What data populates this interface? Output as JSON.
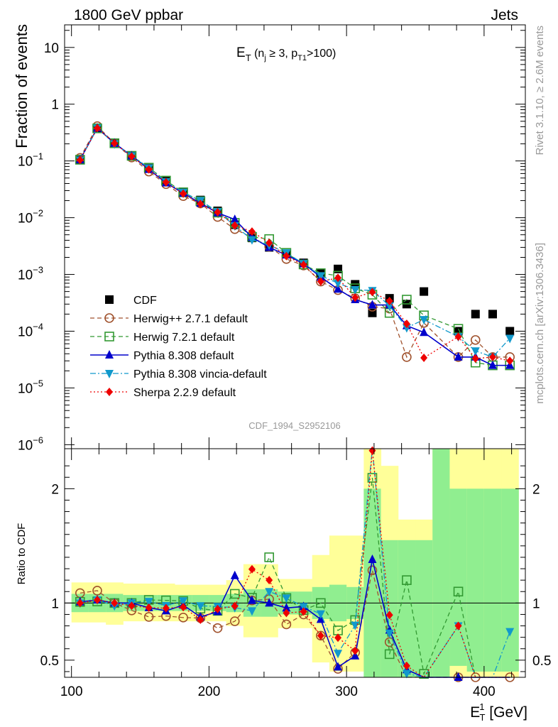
{
  "header": {
    "left": "1800 GeV ppbar",
    "right": "Jets",
    "side_top": "Rivet 3.1.10, ≥ 2.6M events",
    "side_bottom": "mcplots.cern.ch [arXiv:1306.3436]",
    "analysis": "CDF_1994_S2952106"
  },
  "chart_data": [
    {
      "type": "scatter",
      "panel": "main",
      "title": "E_T (n_j ≥ 3, p_T1>100)",
      "ylabel": "Fraction of events",
      "xlabel": "E_T^1 [GeV]",
      "yscale": "log",
      "xlim": [
        95,
        430
      ],
      "ylim": [
        8.5e-07,
        25
      ],
      "grid": false,
      "legend_position": "left-middle",
      "x": [
        106.25,
        118.75,
        131.25,
        143.75,
        156.25,
        168.75,
        181.25,
        193.75,
        206.25,
        218.75,
        231.25,
        243.75,
        256.25,
        268.75,
        281.25,
        293.75,
        306.25,
        318.75,
        331.25,
        343.75,
        356.25,
        381.25,
        393.75,
        406.25,
        418.75
      ],
      "series": [
        {
          "name": "CDF",
          "color": "#000000",
          "marker": "square-filled",
          "line": "none",
          "values": [
            0.104,
            0.37,
            0.205,
            0.123,
            0.074,
            0.044,
            0.0275,
            0.0205,
            0.0132,
            0.0075,
            0.0044,
            0.003,
            0.0023,
            0.0016,
            0.00105,
            0.00125,
            0.00067,
            0.00021,
            0.00038,
            0.0003,
            0.0005,
            0.0001,
            0.0002,
            0.0002,
            0.0001
          ]
        },
        {
          "name": "Herwig++ 2.7.1 default",
          "color": "#a0522d",
          "marker": "circle-open",
          "line": "dashed",
          "values": [
            0.113,
            0.41,
            0.205,
            0.115,
            0.065,
            0.039,
            0.024,
            0.0178,
            0.0103,
            0.0063,
            0.0045,
            0.0031,
            0.00187,
            0.00144,
            0.00075,
            0.00053,
            0.00038,
            0.00027,
            0.00025,
            3.5e-05,
            0.00014,
            3.5e-05,
            7e-05,
            3.5e-05,
            3.5e-05
          ]
        },
        {
          "name": "Herwig 7.2.1 default",
          "color": "#339933",
          "marker": "square-open",
          "line": "dashed",
          "values": [
            0.105,
            0.375,
            0.205,
            0.123,
            0.076,
            0.045,
            0.028,
            0.0195,
            0.0123,
            0.0081,
            0.0046,
            0.0042,
            0.0024,
            0.0015,
            0.00105,
            0.00095,
            0.00057,
            0.00044,
            0.00021,
            0.00036,
            0.00019,
            0.00011,
            2.8e-05,
            2.5e-05,
            2.5e-05
          ]
        },
        {
          "name": "Pythia 8.308 default",
          "color": "#0000cc",
          "marker": "triangle-up-filled",
          "line": "solid",
          "values": [
            0.105,
            0.38,
            0.205,
            0.123,
            0.071,
            0.041,
            0.027,
            0.018,
            0.0122,
            0.0093,
            0.0045,
            0.003,
            0.0022,
            0.00155,
            0.0009,
            0.00055,
            0.00036,
            0.00029,
            0.00029,
            0.000125,
            9.5e-05,
            3.5e-05,
            3.5e-05,
            2.5e-05,
            2.5e-05
          ]
        },
        {
          "name": "Pythia 8.308 vincia-default",
          "color": "#1199cc",
          "marker": "triangle-down-filled",
          "line": "dashdot",
          "values": [
            0.104,
            0.38,
            0.2,
            0.123,
            0.075,
            0.043,
            0.028,
            0.02,
            0.0128,
            0.0072,
            0.0041,
            0.0033,
            0.0024,
            0.00155,
            0.00095,
            0.0007,
            0.00054,
            0.00052,
            0.00028,
            0.000115,
            0.00016,
            8e-05,
            4.5e-05,
            3.5e-05,
            7.5e-05
          ]
        },
        {
          "name": "Sherpa 2.2.9 default",
          "color": "#ee0000",
          "marker": "diamond-filled",
          "line": "dotted",
          "values": [
            0.104,
            0.38,
            0.205,
            0.12,
            0.071,
            0.042,
            0.0265,
            0.0175,
            0.0125,
            0.0073,
            0.0057,
            0.0036,
            0.0021,
            0.00148,
            0.00075,
            0.00087,
            0.00039,
            0.00049,
            0.00034,
            0.000135,
            3.4e-05,
            8e-05,
            3.3e-05,
            3.5e-05,
            3e-05
          ]
        }
      ],
      "y_ticks": [
        {
          "v": 10,
          "m": "10"
        },
        {
          "v": 1,
          "m": "1"
        },
        {
          "v": 0.1,
          "m": "10",
          "e": "−1"
        },
        {
          "v": 0.01,
          "m": "10",
          "e": "−2"
        },
        {
          "v": 0.001,
          "m": "10",
          "e": "−3"
        },
        {
          "v": 0.0001,
          "m": "10",
          "e": "−4"
        },
        {
          "v": 1e-05,
          "m": "10",
          "e": "−5"
        },
        {
          "v": 1e-06,
          "m": "10",
          "e": "−6"
        }
      ]
    },
    {
      "type": "line",
      "panel": "ratio",
      "ylabel": "Ratio to CDF",
      "xlabel": "E_T^1 [GeV]",
      "xlim": [
        95,
        430
      ],
      "ylim": [
        0.35,
        2.35
      ],
      "x_ticks": [
        100,
        200,
        300,
        400
      ],
      "y_ticks": [
        0.5,
        1,
        2
      ],
      "reference_line": 1,
      "uncertainty_bands": {
        "colors": {
          "inner": "#90ee90",
          "outer": "#ffff99"
        },
        "edges": [
          100,
          112.5,
          125,
          137.5,
          150,
          162.5,
          175,
          187.5,
          200,
          212.5,
          225,
          237.5,
          250,
          262.5,
          275,
          287.5,
          300,
          312.5,
          325,
          337.5,
          350,
          362.5,
          375,
          387.5,
          400,
          412.5,
          425
        ],
        "inner_low": [
          0.92,
          0.92,
          0.92,
          0.93,
          0.93,
          0.93,
          0.93,
          0.93,
          0.93,
          0.92,
          0.88,
          0.88,
          0.9,
          0.9,
          0.86,
          0.84,
          0.86,
          0.35,
          0.35,
          0.35,
          0.35,
          0.35,
          0.45,
          0.4,
          0.4,
          0.4
        ],
        "inner_high": [
          1.08,
          1.08,
          1.08,
          1.07,
          1.07,
          1.07,
          1.07,
          1.07,
          1.07,
          1.08,
          1.12,
          1.12,
          1.1,
          1.1,
          1.14,
          1.16,
          1.14,
          2.0,
          1.55,
          1.55,
          1.55,
          2.35,
          2.0,
          2.0,
          2.0,
          2.0
        ],
        "outer_low": [
          0.83,
          0.83,
          0.81,
          0.84,
          0.84,
          0.84,
          0.84,
          0.84,
          0.84,
          0.8,
          0.7,
          0.7,
          0.78,
          0.78,
          0.48,
          0.4,
          0.4,
          0.35,
          0.35,
          0.35,
          0.35,
          0.35,
          0.35,
          0.35,
          0.35,
          0.35
        ],
        "outer_high": [
          1.18,
          1.18,
          1.18,
          1.17,
          1.17,
          1.17,
          1.16,
          1.16,
          1.16,
          1.2,
          1.34,
          1.34,
          1.21,
          1.21,
          1.42,
          1.59,
          1.59,
          2.35,
          2.2,
          1.73,
          1.73,
          2.35,
          2.35,
          2.35,
          2.35,
          2.35
        ]
      }
    }
  ]
}
